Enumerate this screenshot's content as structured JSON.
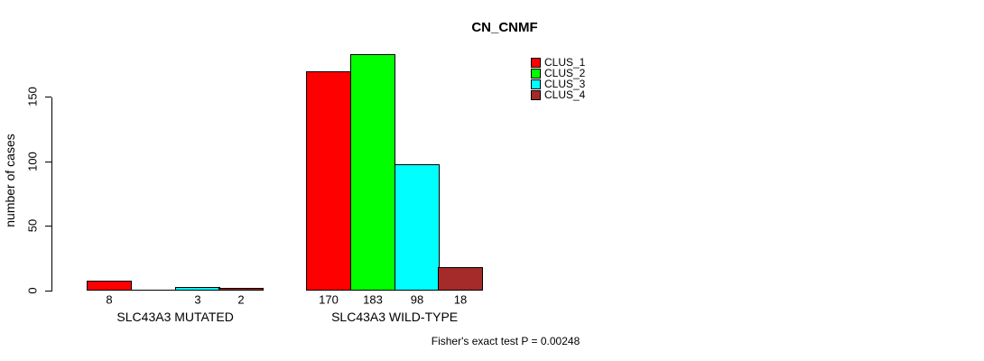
{
  "title": "CN_CNMF",
  "ylabel": "number of cases",
  "footer": "Fisher's exact test P = 0.00248",
  "legend": [
    {
      "label": "CLUS_1",
      "color": "#FF0000"
    },
    {
      "label": "CLUS_2",
      "color": "#00FF00"
    },
    {
      "label": "CLUS_3",
      "color": "#00FFFF"
    },
    {
      "label": "CLUS_4",
      "color": "#A52A2A"
    }
  ],
  "chart_data": {
    "type": "bar",
    "title": "CN_CNMF",
    "xlabel": "",
    "ylabel": "number of cases",
    "categories": [
      "SLC43A3 MUTATED",
      "SLC43A3 WILD-TYPE"
    ],
    "series": [
      {
        "name": "CLUS_1",
        "color": "#FF0000",
        "values": [
          8,
          170
        ]
      },
      {
        "name": "CLUS_2",
        "color": "#00FF00",
        "values": [
          0,
          183
        ]
      },
      {
        "name": "CLUS_3",
        "color": "#00FFFF",
        "values": [
          3,
          98
        ]
      },
      {
        "name": "CLUS_4",
        "color": "#A52A2A",
        "values": [
          2,
          18
        ]
      }
    ],
    "bar_value_labels": [
      [
        "8",
        "",
        "3",
        "2"
      ],
      [
        "170",
        "183",
        "98",
        "18"
      ]
    ],
    "y_ticks": [
      0,
      50,
      100,
      150
    ],
    "ylim": [
      0,
      190
    ],
    "grid": false,
    "legend_position": "top-right",
    "annotation": "Fisher's exact test P = 0.00248",
    "bar_border_color": "#000000"
  }
}
